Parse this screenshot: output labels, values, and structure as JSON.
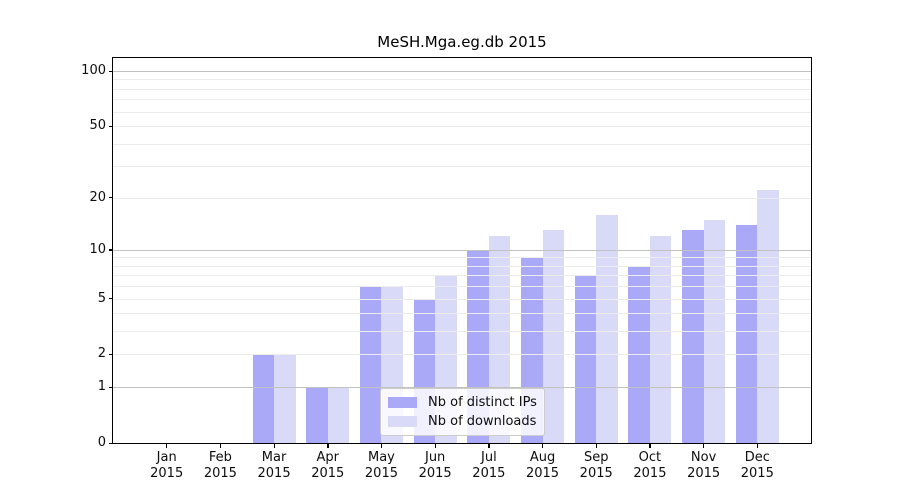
{
  "title": "MeSH.Mga.eg.db 2015",
  "chart_data": {
    "type": "bar",
    "scale": "log10(1+x)",
    "ylim": [
      0,
      100
    ],
    "categories": [
      {
        "month": "Jan",
        "year": "2015"
      },
      {
        "month": "Feb",
        "year": "2015"
      },
      {
        "month": "Mar",
        "year": "2015"
      },
      {
        "month": "Apr",
        "year": "2015"
      },
      {
        "month": "May",
        "year": "2015"
      },
      {
        "month": "Jun",
        "year": "2015"
      },
      {
        "month": "Jul",
        "year": "2015"
      },
      {
        "month": "Aug",
        "year": "2015"
      },
      {
        "month": "Sep",
        "year": "2015"
      },
      {
        "month": "Oct",
        "year": "2015"
      },
      {
        "month": "Nov",
        "year": "2015"
      },
      {
        "month": "Dec",
        "year": "2015"
      }
    ],
    "series": [
      {
        "name": "Nb of distinct IPs",
        "color": "#a9a9f8",
        "values": [
          0,
          0,
          2,
          1,
          6,
          5,
          10,
          9,
          7,
          8,
          13,
          14
        ]
      },
      {
        "name": "Nb of downloads",
        "color": "#d9d9f8",
        "values": [
          0,
          0,
          2,
          1,
          6,
          7,
          12,
          13,
          16,
          12,
          15,
          22
        ]
      }
    ],
    "yticks": [
      0,
      1,
      2,
      5,
      10,
      20,
      50,
      100
    ],
    "gridlines": {
      "minor": [
        2,
        3,
        4,
        5,
        6,
        7,
        8,
        9,
        20,
        30,
        40,
        50,
        60,
        70,
        80,
        90
      ],
      "major": [
        1,
        10,
        100
      ]
    },
    "colors": {
      "grid_minor": "#ececec",
      "grid_major": "#c2c2c2",
      "axis": "#000000",
      "text": "#0d0d0d",
      "legend_border": "#cccccc"
    },
    "legend_position": "lower-center"
  }
}
